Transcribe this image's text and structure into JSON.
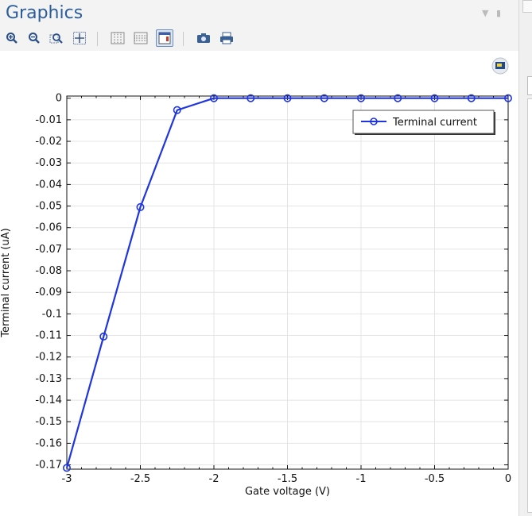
{
  "window": {
    "title": "Graphics"
  },
  "toolbar": {
    "buttons": [
      {
        "icon": "zoom-in-icon"
      },
      {
        "icon": "zoom-out-icon"
      },
      {
        "icon": "zoom-box-icon"
      },
      {
        "icon": "zoom-extents-icon"
      },
      {
        "icon": "grid-vertical-icon"
      },
      {
        "icon": "grid-horizontal-icon"
      },
      {
        "icon": "legend-toggle-icon",
        "active": true
      },
      {
        "icon": "camera-icon"
      },
      {
        "icon": "print-icon"
      }
    ]
  },
  "colors": {
    "series": "#1f35e0",
    "title": "#2b5d9c",
    "grid": "#e4e4e4"
  },
  "chart_data": {
    "type": "line",
    "title": "",
    "xlabel": "Gate voltage (V)",
    "ylabel": "Terminal current (uA)",
    "xlim": [
      -3,
      0
    ],
    "ylim": [
      -0.172,
      0.001
    ],
    "x_ticks": [
      -3,
      -2.5,
      -2,
      -1.5,
      -1,
      -0.5,
      0
    ],
    "x_tick_labels": [
      "-3",
      "-2.5",
      "-2",
      "-1.5",
      "-1",
      "-0.5",
      "0"
    ],
    "y_ticks": [
      0,
      -0.01,
      -0.02,
      -0.03,
      -0.04,
      -0.05,
      -0.06,
      -0.07,
      -0.08,
      -0.09,
      -0.1,
      -0.11,
      -0.12,
      -0.13,
      -0.14,
      -0.15,
      -0.16,
      -0.17
    ],
    "y_tick_labels": [
      "0",
      "-0.01",
      "-0.02",
      "-0.03",
      "-0.04",
      "-0.05",
      "-0.06",
      "-0.07",
      "-0.08",
      "-0.09",
      "-0.1",
      "-0.11",
      "-0.12",
      "-0.13",
      "-0.14",
      "-0.15",
      "-0.16",
      "-0.17"
    ],
    "grid": true,
    "legend": {
      "position": "top-right",
      "entries": [
        "Terminal current"
      ]
    },
    "series": [
      {
        "name": "Terminal current",
        "marker": "circle",
        "x": [
          -3,
          -2.75,
          -2.5,
          -2.25,
          -2,
          -1.75,
          -1.5,
          -1.25,
          -1,
          -0.75,
          -0.5,
          -0.25,
          0
        ],
        "y": [
          -0.1714,
          -0.1105,
          -0.0505,
          -0.0055,
          0,
          0,
          0,
          0,
          0,
          0,
          0,
          0,
          0
        ]
      }
    ]
  }
}
